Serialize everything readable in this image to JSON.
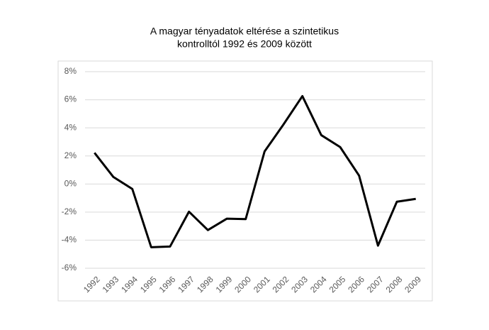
{
  "chart_data": {
    "type": "line",
    "title": [
      "A magyar tényadatok eltérése a szintetikus",
      "kontrolltól 1992 és 2009 között"
    ],
    "categories": [
      "1992",
      "1993",
      "1994",
      "1995",
      "1996",
      "1997",
      "1998",
      "1999",
      "2000",
      "2001",
      "2002",
      "2003",
      "2004",
      "2005",
      "2006",
      "2007",
      "2008",
      "2009"
    ],
    "values": [
      2.22,
      0.5,
      -0.35,
      -4.5,
      -4.45,
      -1.97,
      -3.28,
      -2.47,
      -2.5,
      2.32,
      4.24,
      6.26,
      3.48,
      2.63,
      0.6,
      -4.39,
      -1.26,
      -1.06
    ],
    "color": "#000000",
    "ylim": [
      -6,
      8
    ],
    "yticks": [
      {
        "value": -6,
        "label": "-6%"
      },
      {
        "value": -4,
        "label": "-4%"
      },
      {
        "value": -2,
        "label": "-2%"
      },
      {
        "value": 0,
        "label": "0%"
      },
      {
        "value": 2,
        "label": "2%"
      },
      {
        "value": 4,
        "label": "4%"
      },
      {
        "value": 6,
        "label": "6%"
      },
      {
        "value": 8,
        "label": "8%"
      }
    ],
    "grid": true
  }
}
